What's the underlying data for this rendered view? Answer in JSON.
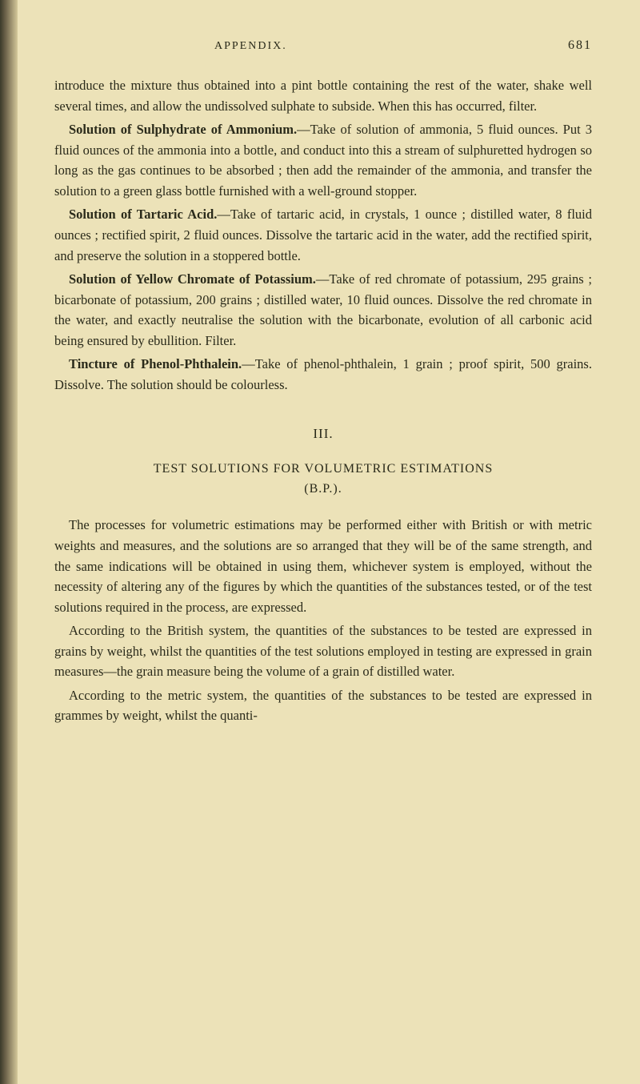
{
  "page": {
    "header_title": "APPENDIX.",
    "page_number": "681",
    "background_color": "#ece2b8",
    "text_color": "#2a2a1a",
    "body_font_size": 16.5,
    "line_height": 1.55
  },
  "p1": "introduce the mixture thus obtained into a pint bottle containing the rest of the water, shake well several times, and allow the undissolved sulphate to subside. When this has occurred, filter.",
  "p2_bold": "Solution of Sulphydrate of Ammonium.",
  "p2_rest": "—Take of solution of ammonia, 5 fluid ounces. Put 3 fluid ounces of the ammonia into a bottle, and conduct into this a stream of sulphuretted hydrogen so long as the gas continues to be absorbed ; then add the remainder of the ammonia, and transfer the solution to a green glass bottle furnished with a well-ground stopper.",
  "p3_bold": "Solution of Tartaric Acid.",
  "p3_rest": "—Take of tartaric acid, in crystals, 1 ounce ; distilled water, 8 fluid ounces ; rectified spirit, 2 fluid ounces. Dissolve the tartaric acid in the water, add the rectified spirit, and preserve the solution in a stoppered bottle.",
  "p4_bold": "Solution of Yellow Chromate of Potassium.",
  "p4_rest": "—Take of red chromate of potassium, 295 grains ; bicarbonate of potassium, 200 grains ; distilled water, 10 fluid ounces. Dissolve the red chromate in the water, and exactly neutralise the solution with the bicarbonate, evolution of all carbonic acid being ensured by ebullition. Filter.",
  "p5_bold": "Tincture of Phenol-Phthalein.",
  "p5_rest": "—Take of phenol-phthalein, 1 grain ; proof spirit, 500 grains. Dissolve. The solution should be colourless.",
  "section_numeral": "III.",
  "section_title_l1": "TEST SOLUTIONS FOR VOLUMETRIC ESTIMATIONS",
  "section_title_l2": "(B.P.).",
  "p6": "The processes for volumetric estimations may be performed either with British or with metric weights and measures, and the solutions are so arranged that they will be of the same strength, and the same indications will be obtained in using them, whichever system is employed, without the necessity of altering any of the figures by which the quantities of the substances tested, or of the test solutions required in the process, are expressed.",
  "p7": "According to the British system, the quantities of the substances to be tested are expressed in grains by weight, whilst the quantities of the test solutions employed in testing are expressed in grain measures—the grain measure being the volume of a grain of distilled water.",
  "p8": "According to the metric system, the quantities of the substances to be tested are expressed in grammes by weight, whilst the quanti-"
}
